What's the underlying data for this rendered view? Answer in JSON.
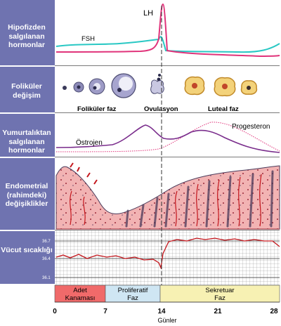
{
  "rows": [
    {
      "label": "Hipofizden salgılanan hormonlar"
    },
    {
      "label": "Foliküler değişim"
    },
    {
      "label": "Yumurtalıktan salgılanan hormonlar"
    },
    {
      "label": "Endometrial (rahimdeki) değişiklikler"
    },
    {
      "label": "Vücut sıcaklığı"
    }
  ],
  "hormones_pituitary": {
    "lh_label": "LH",
    "fsh_label": "FSH"
  },
  "follicle_labels": {
    "follicular": "Foliküler faz",
    "ovulation": "Ovulasyon",
    "luteal": "Luteal faz"
  },
  "hormones_ovary": {
    "estrogen_label": "Östrojen",
    "progesterone_label": "Progesteron"
  },
  "temperature": {
    "ticks": [
      "36.7",
      "36.4",
      "36.1"
    ]
  },
  "phases": [
    {
      "label": "Adet\nKanaması",
      "color": "#f06a6a"
    },
    {
      "label": "Proliferatif\nFaz",
      "color": "#cfe6f3"
    },
    {
      "label": "Sekretuar\nFaz",
      "color": "#f7f1b3"
    }
  ],
  "days_axis": {
    "ticks": [
      "0",
      "7",
      "14",
      "21",
      "28"
    ],
    "label": "Günler"
  },
  "colors": {
    "sidebar": "#6f73b0",
    "lh": "#e0337a",
    "fsh": "#29c8c4",
    "curve": "#7a2d8c",
    "temp": "#c4161c"
  }
}
